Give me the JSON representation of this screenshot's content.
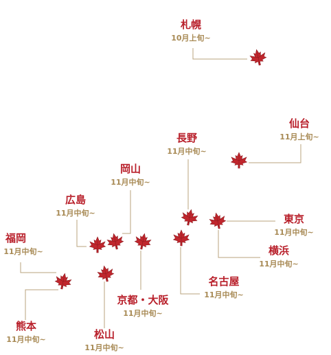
{
  "colors": {
    "city_name": "#b81f2a",
    "date_text": "#a88a55",
    "connector": "#b8a37c",
    "leaf": "#c0262d",
    "leaf_dark": "#8f1a1f"
  },
  "icon": "maple-leaf-icon",
  "cities": [
    {
      "id": "sapporo",
      "name": "札幌",
      "date": "10月上旬~"
    },
    {
      "id": "sendai",
      "name": "仙台",
      "date": "11月上旬~"
    },
    {
      "id": "nagano",
      "name": "長野",
      "date": "11月中旬~"
    },
    {
      "id": "okayama",
      "name": "岡山",
      "date": "11月中旬~"
    },
    {
      "id": "hiroshima",
      "name": "広島",
      "date": "11月中旬~"
    },
    {
      "id": "fukuoka",
      "name": "福岡",
      "date": "11月中旬~"
    },
    {
      "id": "tokyo",
      "name": "東京",
      "date": "11月中旬~"
    },
    {
      "id": "yokohama",
      "name": "横浜",
      "date": "11月中旬~"
    },
    {
      "id": "nagoya",
      "name": "名古屋",
      "date": "11月中旬~"
    },
    {
      "id": "kyoto-osaka",
      "name": "京都・大阪",
      "date": "11月中旬~"
    },
    {
      "id": "matsuyama",
      "name": "松山",
      "date": "11月中旬~"
    },
    {
      "id": "kumamoto",
      "name": "熊本",
      "date": "11月中旬~"
    }
  ]
}
